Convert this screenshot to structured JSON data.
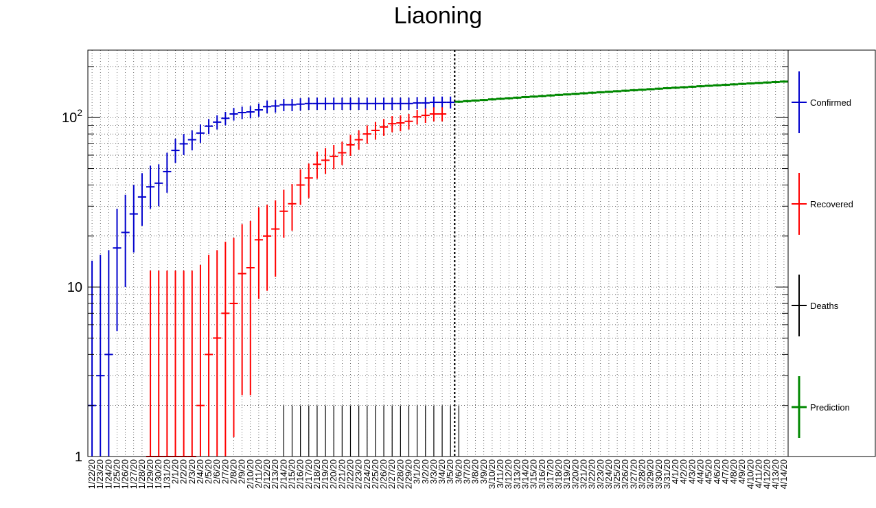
{
  "chart_data": {
    "type": "error-bar",
    "title": "Liaoning",
    "y_scale": "log",
    "ylim": [
      1,
      250
    ],
    "y_tick_labels": [
      "1",
      "10",
      "10^2"
    ],
    "grid": true,
    "legend_position": "right",
    "x_labels": [
      "1/22/20",
      "1/23/20",
      "1/24/20",
      "1/25/20",
      "1/26/20",
      "1/27/20",
      "1/28/20",
      "1/29/20",
      "1/30/20",
      "1/31/20",
      "2/1/20",
      "2/2/20",
      "2/3/20",
      "2/4/20",
      "2/5/20",
      "2/6/20",
      "2/7/20",
      "2/8/20",
      "2/9/20",
      "2/10/20",
      "2/11/20",
      "2/12/20",
      "2/13/20",
      "2/14/20",
      "2/15/20",
      "2/16/20",
      "2/17/20",
      "2/18/20",
      "2/19/20",
      "2/20/20",
      "2/21/20",
      "2/22/20",
      "2/23/20",
      "2/24/20",
      "2/25/20",
      "2/26/20",
      "2/27/20",
      "2/28/20",
      "2/29/20",
      "3/1/20",
      "3/2/20",
      "3/3/20",
      "3/4/20",
      "3/5/20",
      "3/6/20",
      "3/7/20",
      "3/8/20",
      "3/9/20",
      "3/10/20",
      "3/11/20",
      "3/12/20",
      "3/13/20",
      "3/14/20",
      "3/15/20",
      "3/16/20",
      "3/17/20",
      "3/18/20",
      "3/19/20",
      "3/20/20",
      "3/21/20",
      "3/22/20",
      "3/23/20",
      "3/24/20",
      "3/25/20",
      "3/26/20",
      "3/27/20",
      "3/28/20",
      "3/29/20",
      "3/30/20",
      "3/31/20",
      "4/1/20",
      "4/2/20",
      "4/3/20",
      "4/4/20",
      "4/5/20",
      "4/6/20",
      "4/7/20",
      "4/8/20",
      "4/9/20",
      "4/10/20",
      "4/11/20",
      "4/12/20",
      "4/13/20",
      "4/14/20"
    ],
    "cutoff_label": "3/5/20",
    "series": [
      {
        "name": "Confirmed",
        "color": "#0000cc",
        "start_index": 0,
        "values": [
          2,
          3,
          4,
          17,
          21,
          27,
          34,
          39,
          41,
          48,
          64,
          70,
          74,
          81,
          89,
          94,
          99,
          105,
          107,
          108,
          111,
          116,
          117,
          119,
          119,
          120,
          121,
          121,
          121,
          121,
          121,
          121,
          121,
          121,
          121,
          121,
          121,
          121,
          121,
          122,
          122,
          123,
          123,
          123
        ],
        "errors": [
          [
            1,
            14.3
          ],
          [
            1,
            15.5
          ],
          [
            1,
            16.5
          ],
          [
            5.5,
            29
          ],
          [
            10,
            35
          ],
          [
            16,
            40
          ],
          [
            23,
            47
          ],
          [
            29,
            52
          ],
          [
            30,
            53
          ],
          [
            36,
            62
          ],
          [
            54,
            75
          ],
          [
            60,
            80
          ],
          [
            64,
            84
          ],
          [
            71,
            91
          ],
          [
            80,
            98
          ],
          [
            85,
            103
          ],
          [
            90,
            108
          ],
          [
            96,
            114
          ],
          [
            98,
            116
          ],
          [
            99,
            117
          ],
          [
            101,
            121
          ],
          [
            106,
            126
          ],
          [
            107,
            127
          ],
          [
            109,
            129
          ],
          [
            109,
            129
          ],
          [
            110,
            130
          ],
          [
            111,
            131
          ],
          [
            111,
            131
          ],
          [
            111,
            131
          ],
          [
            111,
            131
          ],
          [
            111,
            131
          ],
          [
            111,
            131
          ],
          [
            111,
            131
          ],
          [
            111,
            131
          ],
          [
            111,
            131
          ],
          [
            111,
            131
          ],
          [
            111,
            131
          ],
          [
            111,
            131
          ],
          [
            111,
            131
          ],
          [
            112,
            132
          ],
          [
            112,
            132
          ],
          [
            113,
            133
          ],
          [
            113,
            133
          ],
          [
            113,
            133
          ]
        ]
      },
      {
        "name": "Recovered",
        "color": "#ff0000",
        "start_index": 7,
        "values": [
          1,
          1,
          1,
          1,
          1,
          1,
          2,
          4,
          5,
          7,
          8,
          12,
          13,
          19,
          20,
          22,
          28,
          31,
          40,
          44,
          53,
          56,
          59,
          62,
          69,
          74,
          80,
          84,
          88,
          92,
          93,
          95,
          101,
          103,
          105,
          105
        ],
        "errors": [
          [
            1,
            12.5
          ],
          [
            1,
            12.5
          ],
          [
            1,
            12.5
          ],
          [
            1,
            12.5
          ],
          [
            1,
            12.5
          ],
          [
            1,
            12.5
          ],
          [
            1,
            13.5
          ],
          [
            1,
            15.5
          ],
          [
            1,
            16.5
          ],
          [
            1,
            18.5
          ],
          [
            1.3,
            19.5
          ],
          [
            2.3,
            23.5
          ],
          [
            2.3,
            24.5
          ],
          [
            8.5,
            29.5
          ],
          [
            9.5,
            30.5
          ],
          [
            11.5,
            32.5
          ],
          [
            19.5,
            37.5
          ],
          [
            21.5,
            40.5
          ],
          [
            30.5,
            49.5
          ],
          [
            33.5,
            53.5
          ],
          [
            43.5,
            63
          ],
          [
            46.5,
            66
          ],
          [
            49.5,
            69
          ],
          [
            52.5,
            72
          ],
          [
            59.5,
            79
          ],
          [
            64.5,
            84
          ],
          [
            70,
            90
          ],
          [
            74,
            94
          ],
          [
            78,
            98
          ],
          [
            82,
            102
          ],
          [
            83,
            103
          ],
          [
            85,
            105
          ],
          [
            91,
            111
          ],
          [
            93,
            113
          ],
          [
            95,
            115
          ],
          [
            95,
            115
          ]
        ]
      },
      {
        "name": "Deaths",
        "color": "#000000",
        "start_index": 3,
        "values": [
          1,
          1,
          1,
          1,
          1,
          1,
          1,
          1,
          1,
          1,
          1,
          1,
          1,
          1,
          1,
          1,
          1,
          1,
          1,
          1,
          2,
          2,
          2,
          2,
          2,
          2,
          2,
          2,
          2,
          2,
          2,
          2,
          2,
          2,
          2,
          2,
          2,
          2,
          2,
          2,
          2,
          2,
          1,
          1,
          1,
          1,
          1,
          1,
          1,
          1,
          1,
          1,
          1,
          1,
          1,
          1,
          1,
          1,
          1,
          1,
          1,
          1,
          1,
          1,
          1,
          1,
          1,
          1,
          1,
          1,
          1,
          1,
          1,
          1,
          1,
          1,
          1,
          1,
          1,
          1,
          1
        ],
        "errors": []
      },
      {
        "name": "Prediction",
        "color": "#008800",
        "start_index": 44,
        "values": [
          124,
          125,
          126,
          127,
          128,
          129,
          130,
          131,
          132,
          133,
          134,
          135,
          136,
          137,
          138,
          139,
          140,
          141,
          142,
          143,
          144,
          145,
          146,
          147,
          148,
          149,
          150,
          151,
          152,
          153,
          154,
          155,
          156,
          157,
          158,
          159,
          160,
          161,
          162,
          163
        ],
        "errors": []
      }
    ]
  }
}
